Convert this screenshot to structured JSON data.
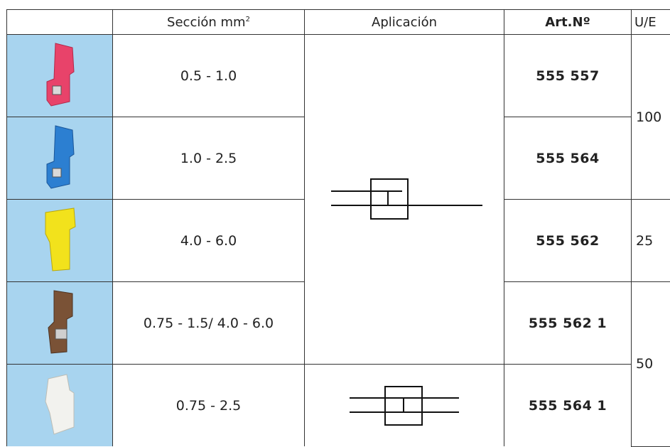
{
  "headers": {
    "photo": "",
    "section_label": "Sección mm",
    "section_sup": "2",
    "application": "Aplicación",
    "article": "Art.Nº",
    "unit": "U/E"
  },
  "rows": [
    {
      "section": "0.5 - 1.0",
      "article": "555 557",
      "color": "#e8436a"
    },
    {
      "section": "1.0 - 2.5",
      "article": "555 564",
      "color": "#2c7fd1"
    },
    {
      "section": "4.0 - 6.0",
      "article": "555 562",
      "color": "#f2e21c"
    },
    {
      "section": "0.75 - 1.5/ 4.0 - 6.0",
      "article": "555 562 1",
      "color": "#7a5236"
    },
    {
      "section": "0.75 - 2.5",
      "article": "555 564 1",
      "color": "#f2f2ee"
    }
  ],
  "units": [
    "100",
    "25",
    "50"
  ],
  "colors": {
    "photo_bg": "#a8d4ef",
    "border": "#333333"
  }
}
